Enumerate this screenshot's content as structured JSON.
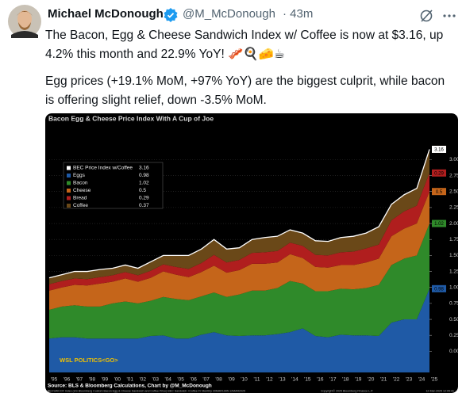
{
  "tweet": {
    "author": {
      "name": "Michael McDonough",
      "handle": "@M_McDonough",
      "time": "· 43m"
    },
    "paragraphs": [
      "The Bacon, Egg & Cheese Sandwich Index w/ Coffee is now at $3.16, up 4.2% this month and 22.9% YoY! 🥓🍳🧀☕",
      "Egg prices (+19.1% MoM, +97% YoY) are the biggest culprit, while bacon is offering slight relief, down -3.5% MoM."
    ]
  },
  "chart_data": {
    "type": "area",
    "title": "Bacon Egg & Cheese Price Index With A Cup of Joe",
    "categories": [
      "'95",
      "'96",
      "'97",
      "'98",
      "'99",
      "'00",
      "'01",
      "'02",
      "'03",
      "'04",
      "'05",
      "'06",
      "'07",
      "'08",
      "'09",
      "'10",
      "'11",
      "'12",
      "'13",
      "'14",
      "'15",
      "'16",
      "'17",
      "'18",
      "'19",
      "'20",
      "'21",
      "'22",
      "'23",
      "'24",
      "'25"
    ],
    "line": {
      "name": "BEC Price Index w/Coffee",
      "color": "#ffffff",
      "values": [
        1.15,
        1.2,
        1.25,
        1.25,
        1.28,
        1.3,
        1.35,
        1.3,
        1.4,
        1.5,
        1.5,
        1.5,
        1.6,
        1.75,
        1.6,
        1.62,
        1.75,
        1.78,
        1.8,
        1.9,
        1.85,
        1.73,
        1.72,
        1.78,
        1.8,
        1.85,
        1.95,
        2.3,
        2.45,
        2.55,
        3.16
      ]
    },
    "series": [
      {
        "name": "Eggs",
        "color": "#1f5aa6",
        "values": [
          0.2,
          0.22,
          0.22,
          0.2,
          0.2,
          0.2,
          0.2,
          0.2,
          0.24,
          0.25,
          0.2,
          0.2,
          0.26,
          0.3,
          0.25,
          0.24,
          0.25,
          0.25,
          0.27,
          0.3,
          0.36,
          0.24,
          0.22,
          0.26,
          0.25,
          0.25,
          0.24,
          0.45,
          0.5,
          0.5,
          0.98
        ]
      },
      {
        "name": "Bacon",
        "color": "#2f8a2a",
        "values": [
          0.45,
          0.48,
          0.5,
          0.5,
          0.5,
          0.55,
          0.58,
          0.55,
          0.55,
          0.6,
          0.62,
          0.6,
          0.6,
          0.62,
          0.6,
          0.65,
          0.7,
          0.7,
          0.72,
          0.8,
          0.7,
          0.7,
          0.72,
          0.72,
          0.72,
          0.74,
          0.8,
          0.9,
          0.95,
          1.0,
          1.02
        ]
      },
      {
        "name": "Cheese",
        "color": "#c5651a",
        "values": [
          0.3,
          0.3,
          0.32,
          0.33,
          0.36,
          0.34,
          0.36,
          0.34,
          0.36,
          0.4,
          0.38,
          0.36,
          0.38,
          0.42,
          0.38,
          0.38,
          0.42,
          0.42,
          0.4,
          0.42,
          0.4,
          0.38,
          0.37,
          0.37,
          0.38,
          0.4,
          0.41,
          0.45,
          0.47,
          0.5,
          0.5
        ]
      },
      {
        "name": "Bread",
        "color": "#b01e1e",
        "values": [
          0.1,
          0.1,
          0.1,
          0.1,
          0.1,
          0.1,
          0.1,
          0.1,
          0.11,
          0.11,
          0.12,
          0.13,
          0.14,
          0.17,
          0.16,
          0.16,
          0.17,
          0.18,
          0.18,
          0.18,
          0.19,
          0.19,
          0.19,
          0.2,
          0.21,
          0.22,
          0.22,
          0.25,
          0.27,
          0.28,
          0.29
        ]
      },
      {
        "name": "Coffee",
        "color": "#6a4818",
        "values": [
          0.1,
          0.1,
          0.11,
          0.12,
          0.12,
          0.11,
          0.11,
          0.11,
          0.14,
          0.14,
          0.18,
          0.21,
          0.22,
          0.24,
          0.21,
          0.19,
          0.21,
          0.23,
          0.23,
          0.2,
          0.2,
          0.22,
          0.22,
          0.23,
          0.24,
          0.24,
          0.28,
          0.25,
          0.26,
          0.27,
          0.37
        ]
      }
    ],
    "ylim": [
      -0.33,
      3.55
    ],
    "yticks": [
      {
        "value": 0,
        "label": "0.00"
      },
      {
        "value": 0.25,
        "label": "0.25"
      },
      {
        "value": 0.5,
        "label": "0.50"
      },
      {
        "value": 0.75,
        "label": "0.75"
      },
      {
        "value": 1,
        "label": "1.00"
      },
      {
        "value": 1.25,
        "label": "1.25"
      },
      {
        "value": 1.5,
        "label": "1.50"
      },
      {
        "value": 1.75,
        "label": "1.75"
      },
      {
        "value": 2,
        "label": "2.00"
      },
      {
        "value": 2.25,
        "label": "2.25"
      },
      {
        "value": 2.5,
        "label": "2.50"
      },
      {
        "value": 2.75,
        "label": "2.75"
      },
      {
        "value": 3,
        "label": "3.00"
      }
    ],
    "grid": true,
    "banner": "WSL POLITICS<GO>",
    "source": "Source: BLS & Bloomberg Calculations, Chart by @M_McDonough",
    "footer": [
      "BECSWCOF Index (US Bloomberg Custom Bacon Egg & Cheese Sandwich and Coffee Price) BEC Sandwich +Coffee Fr   Monthly 20MAR1995-12MAR2025",
      "Copyright© 2025 Bloomberg Finance L.P.",
      "12-Mar-2025 12:05:41"
    ]
  }
}
